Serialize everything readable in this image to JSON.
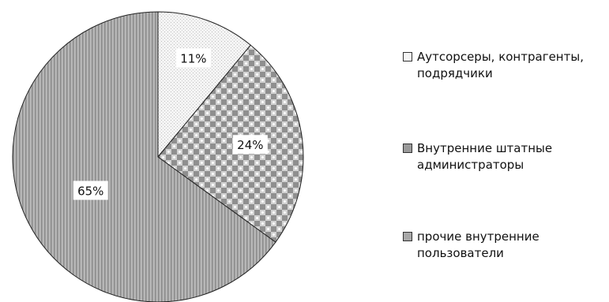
{
  "chart_data": {
    "type": "pie",
    "slices": [
      {
        "label": "Аутсорсеры, контрагенты, подрядчики",
        "value": 11,
        "display": "11%",
        "fill": "#f2f2f2",
        "pattern": "fine-dots"
      },
      {
        "label": "Внутренние штатные администраторы",
        "value": 24,
        "display": "24%",
        "fill": "#cfcfcf",
        "pattern": "checker"
      },
      {
        "label": "прочие внутренние пользователи",
        "value": 65,
        "display": "65%",
        "fill": "#a8a8a8",
        "pattern": "vertical-stripes"
      }
    ],
    "start_angle_deg": 0,
    "direction": "clockwise",
    "legend_position": "right",
    "title": ""
  }
}
